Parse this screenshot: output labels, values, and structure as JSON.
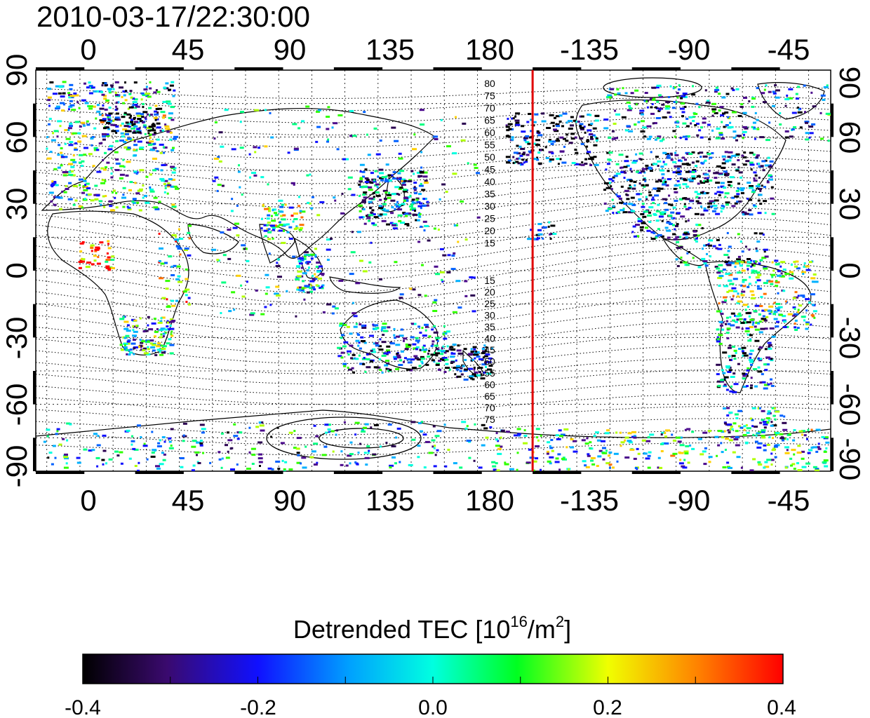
{
  "title": "2010-03-17/22:30:00",
  "map": {
    "x_ticks": [
      "0",
      "45",
      "90",
      "135",
      "180",
      "-135",
      "-90",
      "-45"
    ],
    "y_ticks": [
      "90",
      "60",
      "30",
      "0",
      "-30",
      "-60",
      "-90"
    ],
    "lon_range": [
      -20,
      340
    ],
    "lat_range": [
      -90,
      90
    ],
    "magnetic_lat_labels_north": [
      "80",
      "75",
      "70",
      "65",
      "60",
      "55",
      "50",
      "45",
      "40",
      "35",
      "30",
      "25",
      "20",
      "15"
    ],
    "magnetic_lat_labels_south": [
      "15",
      "20",
      "25",
      "30",
      "35",
      "40",
      "45",
      "50",
      "55",
      "60",
      "65",
      "70",
      "75"
    ],
    "marker_line": {
      "lon": 205,
      "color": "#e00000"
    }
  },
  "colorbar": {
    "title": "Detrended TEC  [10",
    "title_sup": "16",
    "title_mid": "/m",
    "title_sup2": "2",
    "title_end": "]",
    "ticks": [
      "-0.4",
      "-0.2",
      "0.0",
      "0.2",
      "0.4"
    ],
    "range": [
      -0.4,
      0.4
    ]
  }
}
